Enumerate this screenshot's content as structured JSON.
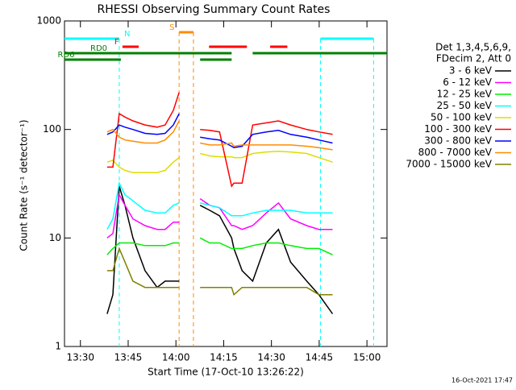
{
  "chart_data": {
    "type": "line",
    "title": "RHESSI Observing Summary Count Rates",
    "xlabel": "Start Time (17-Oct-10 13:26:22)",
    "ylabel": "Count Rate (s⁻¹ detector⁻¹)",
    "legend_header": [
      "Det 1,3,4,5,6,9,",
      "FDecim 2, Att 0"
    ],
    "footer": "16-Oct-2021 17:47",
    "log_y": true,
    "xlim": [
      805,
      906.3
    ],
    "ylim": [
      1,
      1000
    ],
    "xticks": [
      {
        "value": 810,
        "label": "13:30"
      },
      {
        "value": 825,
        "label": "13:45"
      },
      {
        "value": 840,
        "label": "14:00"
      },
      {
        "value": 855,
        "label": "14:15"
      },
      {
        "value": 870,
        "label": "14:30"
      },
      {
        "value": 885,
        "label": "14:45"
      },
      {
        "value": 900,
        "label": "15:00"
      }
    ],
    "yticks": [
      1,
      10,
      100,
      1000
    ],
    "x": [
      818.4,
      820.2,
      822.2,
      824,
      826.5,
      830.3,
      834.1,
      836.6,
      839.2,
      841,
      845,
      847.6,
      850.6,
      853.7,
      857.5,
      858.2,
      860.8,
      864.1,
      868.4,
      872.2,
      876,
      881.1,
      884.9,
      889.2
    ],
    "series": [
      {
        "name": "3 - 6 keV",
        "color": "#000000",
        "values": [
          2,
          3,
          30,
          20,
          10,
          5,
          3.5,
          4,
          4,
          4,
          null,
          20,
          18,
          16,
          10,
          8,
          5,
          4,
          9,
          12,
          6,
          4,
          3,
          2
        ]
      },
      {
        "name": "6 - 12 keV",
        "color": "#ff00ff",
        "values": [
          10,
          11,
          25,
          20,
          15,
          13,
          12,
          12,
          14,
          14,
          null,
          23,
          20,
          19,
          13,
          13,
          12,
          13,
          17,
          21,
          15,
          13,
          12,
          12
        ]
      },
      {
        "name": "12 - 25 keV",
        "color": "#00ee00",
        "values": [
          7,
          8,
          9,
          9,
          9,
          8.5,
          8.5,
          8.5,
          9,
          9,
          null,
          10,
          9,
          9,
          8,
          8,
          8,
          8.5,
          9,
          9,
          8.5,
          8,
          8,
          7
        ]
      },
      {
        "name": "25 - 50 keV",
        "color": "#00ffff",
        "values": [
          12,
          15,
          32,
          25,
          22,
          18,
          17,
          17,
          20,
          21,
          null,
          21,
          20,
          19,
          16,
          16,
          16,
          17,
          18,
          18,
          18,
          17,
          17,
          17
        ]
      },
      {
        "name": "50 - 100 keV",
        "color": "#dddd00",
        "values": [
          50,
          52,
          45,
          42,
          40,
          40,
          40,
          42,
          50,
          55,
          null,
          60,
          57,
          56,
          56,
          55,
          55,
          60,
          62,
          63,
          62,
          60,
          55,
          50
        ]
      },
      {
        "name": "100 - 300 keV",
        "color": "#ff0000",
        "values": [
          45,
          45,
          140,
          130,
          120,
          110,
          105,
          110,
          150,
          220,
          null,
          100,
          98,
          95,
          30,
          32,
          32,
          110,
          115,
          120,
          110,
          100,
          95,
          90
        ]
      },
      {
        "name": "300 - 800 keV",
        "color": "#0000ff",
        "values": [
          90,
          95,
          110,
          105,
          100,
          92,
          90,
          92,
          110,
          140,
          null,
          85,
          82,
          80,
          70,
          68,
          70,
          90,
          95,
          98,
          90,
          85,
          80,
          75
        ]
      },
      {
        "name": "800 - 7000 keV",
        "color": "#ff8c00",
        "values": [
          95,
          100,
          85,
          80,
          78,
          75,
          75,
          80,
          95,
          120,
          null,
          75,
          72,
          72,
          75,
          70,
          72,
          72,
          72,
          72,
          72,
          70,
          68,
          65
        ]
      },
      {
        "name": "7000 - 15000 keV",
        "color": "#808000",
        "values": [
          5,
          5,
          8,
          6,
          4,
          3.5,
          3.5,
          3.5,
          3.5,
          3.5,
          null,
          3.5,
          3.5,
          3.5,
          3.5,
          3,
          3.5,
          3.5,
          3.5,
          3.5,
          3.5,
          3.5,
          3,
          3
        ]
      }
    ],
    "flags": [
      {
        "label": "N",
        "color": "#00ffff",
        "intervals": [
          [
            805,
            822.2
          ],
          [
            885.4,
            902.1
          ]
        ]
      },
      {
        "label": "S",
        "color": "#ff8c00",
        "intervals": [
          [
            841,
            845.5
          ]
        ]
      },
      {
        "label": "F",
        "color": "#ff0000",
        "intervals": [
          [
            823.2,
            828.3
          ],
          [
            850.4,
            862.3
          ],
          [
            869.6,
            875
          ]
        ]
      },
      {
        "label": "RD0",
        "color": "#008000",
        "intervals": [
          [
            805,
            857.5
          ],
          [
            864.1,
            906.3
          ]
        ]
      },
      {
        "label": "RD6",
        "color": "#008000",
        "intervals": [
          [
            805,
            822.7
          ],
          [
            847.6,
            857.5
          ]
        ]
      }
    ]
  }
}
